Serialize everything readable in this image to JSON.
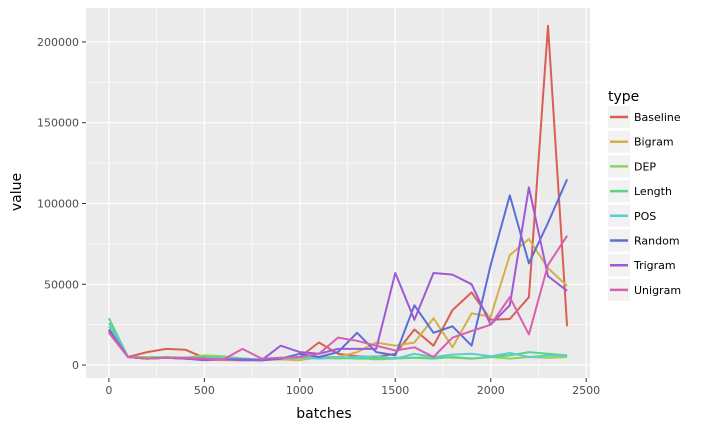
{
  "chart_data": {
    "type": "line",
    "xlabel": "batches",
    "ylabel": "value",
    "xlim": [
      -120,
      2520
    ],
    "ylim": [
      -8000,
      221000
    ],
    "x_ticks": [
      0,
      500,
      1000,
      1500,
      2000,
      2500
    ],
    "x_tick_labels": [
      "0",
      "500",
      "1000",
      "1500",
      "2000",
      "2500"
    ],
    "y_ticks": [
      0,
      50000,
      100000,
      150000,
      200000
    ],
    "y_tick_labels": [
      "0",
      "50000",
      "100000",
      "150000",
      "200000"
    ],
    "x_minor_ticks": [
      250,
      750,
      1250,
      1750,
      2250
    ],
    "y_minor_ticks": [
      25000,
      75000,
      125000,
      175000
    ],
    "grid": true,
    "legend": {
      "title": "type",
      "position": "right"
    },
    "x": [
      0,
      100,
      200,
      300,
      400,
      500,
      600,
      700,
      800,
      900,
      1000,
      1100,
      1200,
      1300,
      1400,
      1500,
      1600,
      1700,
      1800,
      1900,
      2000,
      2100,
      2200,
      2300,
      2400
    ],
    "series": [
      {
        "name": "Baseline",
        "color": "#d95f55",
        "values": [
          20000,
          5000,
          8000,
          10000,
          9500,
          4500,
          4000,
          3500,
          3000,
          4000,
          5000,
          14000,
          7000,
          5500,
          5000,
          7000,
          22000,
          12000,
          34000,
          45000,
          28000,
          28500,
          42000,
          210000,
          24000
        ]
      },
      {
        "name": "Bigram",
        "color": "#d3b04c",
        "values": [
          22000,
          5000,
          4000,
          4500,
          4000,
          3500,
          3000,
          3000,
          3000,
          3500,
          3000,
          5000,
          5000,
          8000,
          14000,
          12000,
          14000,
          29000,
          11000,
          32000,
          30000,
          68000,
          78000,
          60000,
          49000
        ]
      },
      {
        "name": "DEP",
        "color": "#8fd45a",
        "values": [
          24000,
          5000,
          5000,
          5000,
          4500,
          6000,
          5500,
          4000,
          3500,
          4000,
          4500,
          4500,
          4000,
          4500,
          3500,
          4000,
          4500,
          5000,
          4500,
          4000,
          5000,
          4000,
          5000,
          4500,
          5000
        ]
      },
      {
        "name": "Length",
        "color": "#5bd67e",
        "values": [
          29000,
          5000,
          4000,
          4500,
          4500,
          5000,
          4500,
          4000,
          3500,
          4000,
          4500,
          4500,
          4500,
          4000,
          4000,
          4500,
          4500,
          4000,
          5000,
          4000,
          5000,
          6000,
          8000,
          7000,
          6000
        ]
      },
      {
        "name": "POS",
        "color": "#5acdd3",
        "values": [
          26000,
          5000,
          4000,
          4500,
          4000,
          4000,
          4500,
          4000,
          3500,
          4000,
          4500,
          4000,
          4500,
          5000,
          5500,
          4000,
          7000,
          5000,
          6500,
          7000,
          5500,
          7500,
          5000,
          6000,
          6000
        ]
      },
      {
        "name": "Random",
        "color": "#5a6fd6",
        "values": [
          22000,
          5000,
          4000,
          4500,
          4000,
          3500,
          3500,
          3500,
          3000,
          4000,
          7000,
          5000,
          8000,
          20000,
          8000,
          6000,
          37000,
          20000,
          24000,
          12000,
          62000,
          105000,
          63000,
          88000,
          115000
        ]
      },
      {
        "name": "Trigram",
        "color": "#9e5ad6",
        "values": [
          21000,
          5000,
          4000,
          4500,
          4000,
          3000,
          3500,
          3000,
          3000,
          12000,
          8000,
          7000,
          10000,
          10000,
          10000,
          57000,
          28000,
          57000,
          56000,
          50000,
          25000,
          37000,
          110000,
          55000,
          46000
        ]
      },
      {
        "name": "Unigram",
        "color": "#d95fb0",
        "values": [
          20000,
          5000,
          4000,
          4500,
          4500,
          4000,
          3500,
          10000,
          4000,
          4500,
          5000,
          7000,
          17000,
          15000,
          12000,
          9000,
          11000,
          5000,
          17000,
          21000,
          25000,
          42000,
          19000,
          62000,
          80000
        ]
      }
    ]
  }
}
